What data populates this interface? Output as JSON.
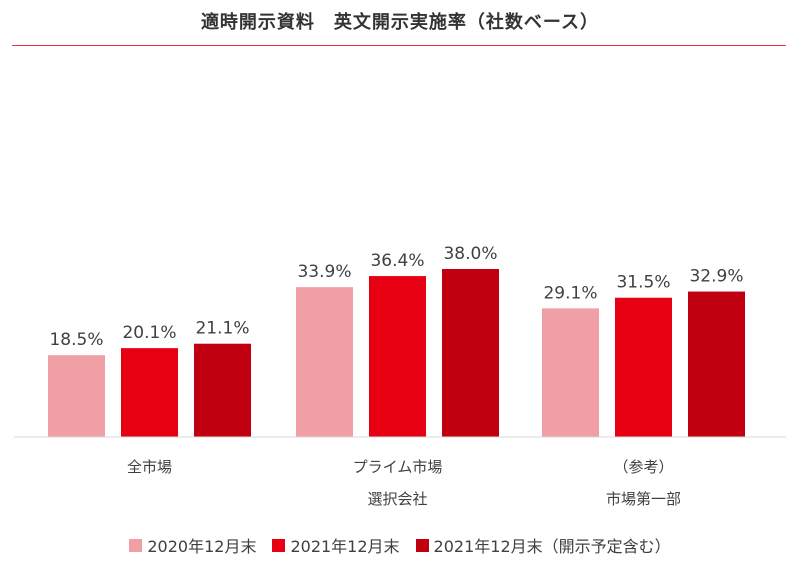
{
  "title": "適時開示資料　英文開示実施率（社数ベース）",
  "chart_data": {
    "type": "bar",
    "categories": [
      [
        "全市場"
      ],
      [
        "プライム市場",
        "選択会社"
      ],
      [
        "（参考）",
        "市場第一部"
      ]
    ],
    "series": [
      {
        "name": "2020年12月末",
        "values": [
          18.5,
          33.9,
          29.1
        ],
        "labels": [
          "18.5%",
          "33.9%",
          "29.1%"
        ],
        "color": "#f0a0a4"
      },
      {
        "name": "2021年12月末",
        "values": [
          20.1,
          36.4,
          31.5
        ],
        "labels": [
          "20.1%",
          "36.4%",
          "31.5%"
        ],
        "color": "#e60012"
      },
      {
        "name": "2021年12月末（開示予定含む）",
        "values": [
          21.1,
          38.0,
          32.9
        ],
        "labels": [
          "21.1%",
          "38.0%",
          "32.9%"
        ],
        "color": "#c00010"
      }
    ],
    "ylim": [
      0,
      38
    ],
    "grid": false,
    "legend_position": "bottom"
  }
}
